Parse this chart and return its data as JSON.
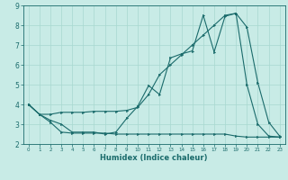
{
  "xlabel": "Humidex (Indice chaleur)",
  "xlim": [
    -0.5,
    23.5
  ],
  "ylim": [
    2,
    9
  ],
  "yticks": [
    2,
    3,
    4,
    5,
    6,
    7,
    8,
    9
  ],
  "xticks": [
    0,
    1,
    2,
    3,
    4,
    5,
    6,
    7,
    8,
    9,
    10,
    11,
    12,
    13,
    14,
    15,
    16,
    17,
    18,
    19,
    20,
    21,
    22,
    23
  ],
  "bg_color": "#c8ebe6",
  "line_color": "#1a6b6b",
  "grid_color": "#a8d8d0",
  "line1_x": [
    0,
    1,
    2,
    3,
    4,
    5,
    6,
    7,
    8,
    9,
    10,
    11,
    12,
    13,
    14,
    15,
    16,
    17,
    18,
    19,
    20,
    21,
    22,
    23
  ],
  "line1_y": [
    4.0,
    3.5,
    3.2,
    3.0,
    2.6,
    2.6,
    2.6,
    2.5,
    2.6,
    3.3,
    3.9,
    4.95,
    4.5,
    6.35,
    6.55,
    6.7,
    8.5,
    6.65,
    8.45,
    8.6,
    5.0,
    3.0,
    2.4,
    2.35
  ],
  "line2_x": [
    0,
    1,
    2,
    3,
    4,
    5,
    6,
    7,
    8,
    9,
    10,
    11,
    12,
    13,
    14,
    15,
    16,
    17,
    18,
    19,
    20,
    21,
    22,
    23
  ],
  "line2_y": [
    4.0,
    3.5,
    3.5,
    3.6,
    3.6,
    3.6,
    3.65,
    3.65,
    3.65,
    3.7,
    3.85,
    4.5,
    5.5,
    6.0,
    6.5,
    7.0,
    7.5,
    8.0,
    8.5,
    8.6,
    7.9,
    5.1,
    3.1,
    2.4
  ],
  "line3_x": [
    0,
    1,
    2,
    3,
    4,
    5,
    6,
    7,
    8,
    9,
    10,
    11,
    12,
    13,
    14,
    15,
    16,
    17,
    18,
    19,
    20,
    21,
    22,
    23
  ],
  "line3_y": [
    4.0,
    3.5,
    3.1,
    2.6,
    2.55,
    2.55,
    2.55,
    2.55,
    2.5,
    2.5,
    2.5,
    2.5,
    2.5,
    2.5,
    2.5,
    2.5,
    2.5,
    2.5,
    2.5,
    2.4,
    2.35,
    2.35,
    2.35,
    2.35
  ]
}
